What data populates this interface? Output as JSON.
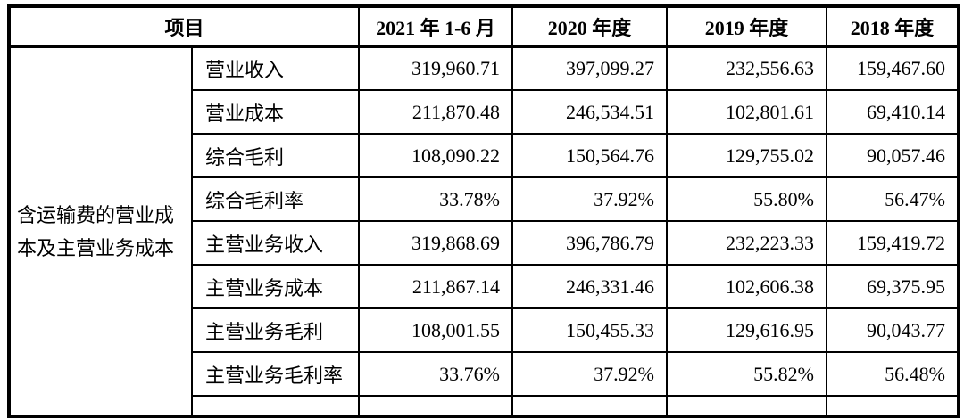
{
  "table": {
    "header": {
      "item": "项目",
      "col_2021": "2021 年 1-6 月",
      "col_2020": "2020 年度",
      "col_2019": "2019 年度",
      "col_2018": "2018 年度"
    },
    "group_label": "含运输费的营业成本及主营业务成本",
    "rows": [
      {
        "label": "营业收入",
        "v2021": "319,960.71",
        "v2020": "397,099.27",
        "v2019": "232,556.63",
        "v2018": "159,467.60"
      },
      {
        "label": "营业成本",
        "v2021": "211,870.48",
        "v2020": "246,534.51",
        "v2019": "102,801.61",
        "v2018": "69,410.14"
      },
      {
        "label": "综合毛利",
        "v2021": "108,090.22",
        "v2020": "150,564.76",
        "v2019": "129,755.02",
        "v2018": "90,057.46"
      },
      {
        "label": "综合毛利率",
        "v2021": "33.78%",
        "v2020": "37.92%",
        "v2019": "55.80%",
        "v2018": "56.47%"
      },
      {
        "label": "主营业务收入",
        "v2021": "319,868.69",
        "v2020": "396,786.79",
        "v2019": "232,223.33",
        "v2018": "159,419.72"
      },
      {
        "label": "主营业务成本",
        "v2021": "211,867.14",
        "v2020": "246,331.46",
        "v2019": "102,606.38",
        "v2018": "69,375.95"
      },
      {
        "label": "主营业务毛利",
        "v2021": "108,001.55",
        "v2020": "150,455.33",
        "v2019": "129,616.95",
        "v2018": "90,043.77"
      },
      {
        "label": "主营业务毛利率",
        "v2021": "33.76%",
        "v2020": "37.92%",
        "v2019": "55.82%",
        "v2018": "56.48%"
      }
    ]
  }
}
